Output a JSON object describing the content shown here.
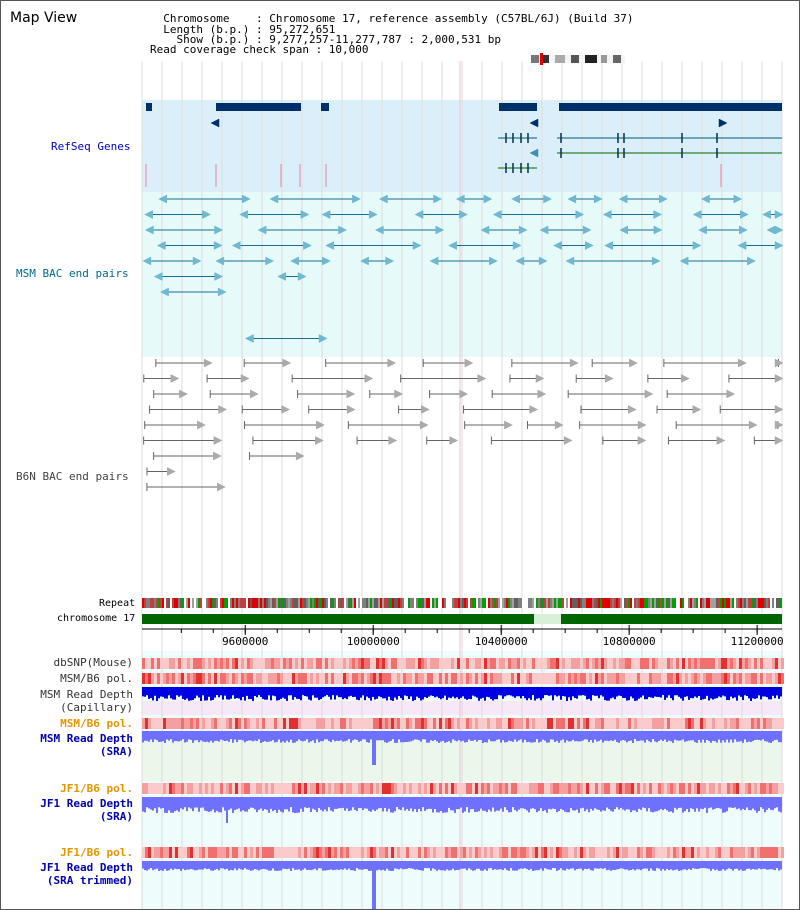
{
  "header": {
    "title": "Map View",
    "info_lines": [
      "  Chromosome    : Chromosome 17, reference assembly (C57BL/6J) (Build 37)",
      "  Length (b.p.) : 95,272,651",
      "    Show (b.p.) : 9,277,257-11,277,787 : 2,000,531 bp",
      "Read coverage check span : 10,000"
    ]
  },
  "tracks": {
    "refseq": "RefSeq Genes",
    "msm_bac": "MSM BAC end pairs",
    "b6n_bac": "B6N BAC end pairs",
    "repeat": "Repeat",
    "chromosome": "chromosome 17"
  },
  "axis": {
    "start": 9277257,
    "end": 11277787,
    "ticks": [
      "9600000",
      "10000000",
      "10400000",
      "10800000",
      "11200000"
    ]
  },
  "lower_tracks": [
    {
      "id": "dbsnp",
      "label": "dbSNP(Mouse)",
      "color": "#333333"
    },
    {
      "id": "msm_b6_pol",
      "label": "MSM/B6 pol.",
      "color": "#333333"
    },
    {
      "id": "msm_depth_cap",
      "label": "MSM Read Depth\n(Capillary)",
      "color": "#333333"
    },
    {
      "id": "msm_b6_pol2",
      "label": "MSM/B6 pol.",
      "color": "#e69500"
    },
    {
      "id": "msm_depth_sra",
      "label": "MSM Read Depth\n(SRA)",
      "color": "#0000b0"
    },
    {
      "id": "jf1_b6_pol",
      "label": "JF1/B6 pol.",
      "color": "#e69500"
    },
    {
      "id": "jf1_depth_sra",
      "label": "JF1 Read Depth\n(SRA)",
      "color": "#0000b0"
    },
    {
      "id": "jf1_b6_pol2",
      "label": "JF1/B6 pol.",
      "color": "#e69500"
    },
    {
      "id": "jf1_depth_trim",
      "label": "JF1 Read Depth\n(SRA trimmed)",
      "color": "#0000b0"
    }
  ],
  "colors": {
    "refseq_bg": "#dbeffa",
    "msm_bg": "#e6fafa",
    "gene": "#00306a",
    "msm_feature": "#1a6d8c",
    "b6n_feature": "#666666",
    "chrom_bar": "#006400",
    "depth_dark": "#0000e0",
    "depth_light": "#7070ff",
    "pol": "#f4a0a0"
  }
}
